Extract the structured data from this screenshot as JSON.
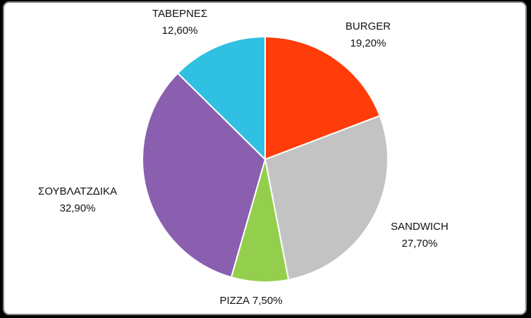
{
  "chart_data": {
    "type": "pie",
    "categories": [
      "BURGER",
      "SANDWICH",
      "PIZZA",
      "ΣΟΥΒΛΑΤΖΔΙΚΑ",
      "ΤΑΒΕΡΝΕΣ"
    ],
    "values": [
      19.2,
      27.7,
      7.5,
      32.9,
      12.6
    ],
    "value_labels": [
      "19,20%",
      "27,70%",
      "7,50%",
      "32,90%",
      "12,60%"
    ],
    "colors": [
      "#ff3c0a",
      "#c3c3c3",
      "#93cf4c",
      "#8a5fb0",
      "#2fc0e2"
    ]
  }
}
